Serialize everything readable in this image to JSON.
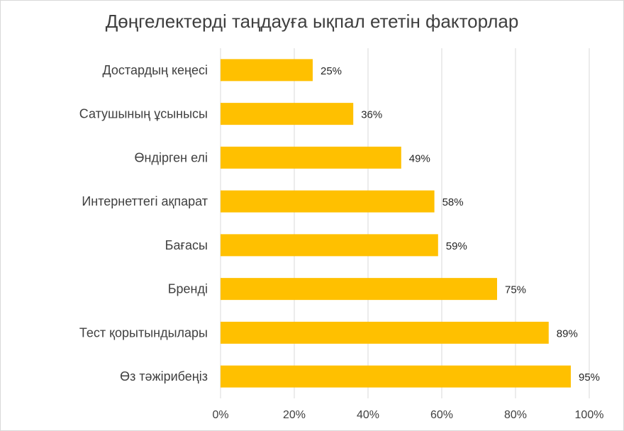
{
  "chart_data": {
    "type": "bar",
    "orientation": "horizontal",
    "title": "Дөңгелектерді таңдауға ықпал ететін факторлар",
    "categories": [
      "Достардың кеңесі",
      "Сатушының ұсынысы",
      "Өндірген елі",
      "Интернеттегі ақпарат",
      "Бағасы",
      "Бренді",
      "Тест қорытындылары",
      "Өз тәжірибеңіз"
    ],
    "values": [
      25,
      36,
      49,
      58,
      59,
      75,
      89,
      95
    ],
    "data_labels": [
      "25%",
      "36%",
      "49%",
      "58%",
      "59%",
      "75%",
      "89%",
      "95%"
    ],
    "xticks": [
      "0%",
      "20%",
      "40%",
      "60%",
      "80%",
      "100%"
    ],
    "xlim": [
      0,
      100
    ],
    "grid": "vertical",
    "legend": "none",
    "bar_color": "#ffc000"
  }
}
